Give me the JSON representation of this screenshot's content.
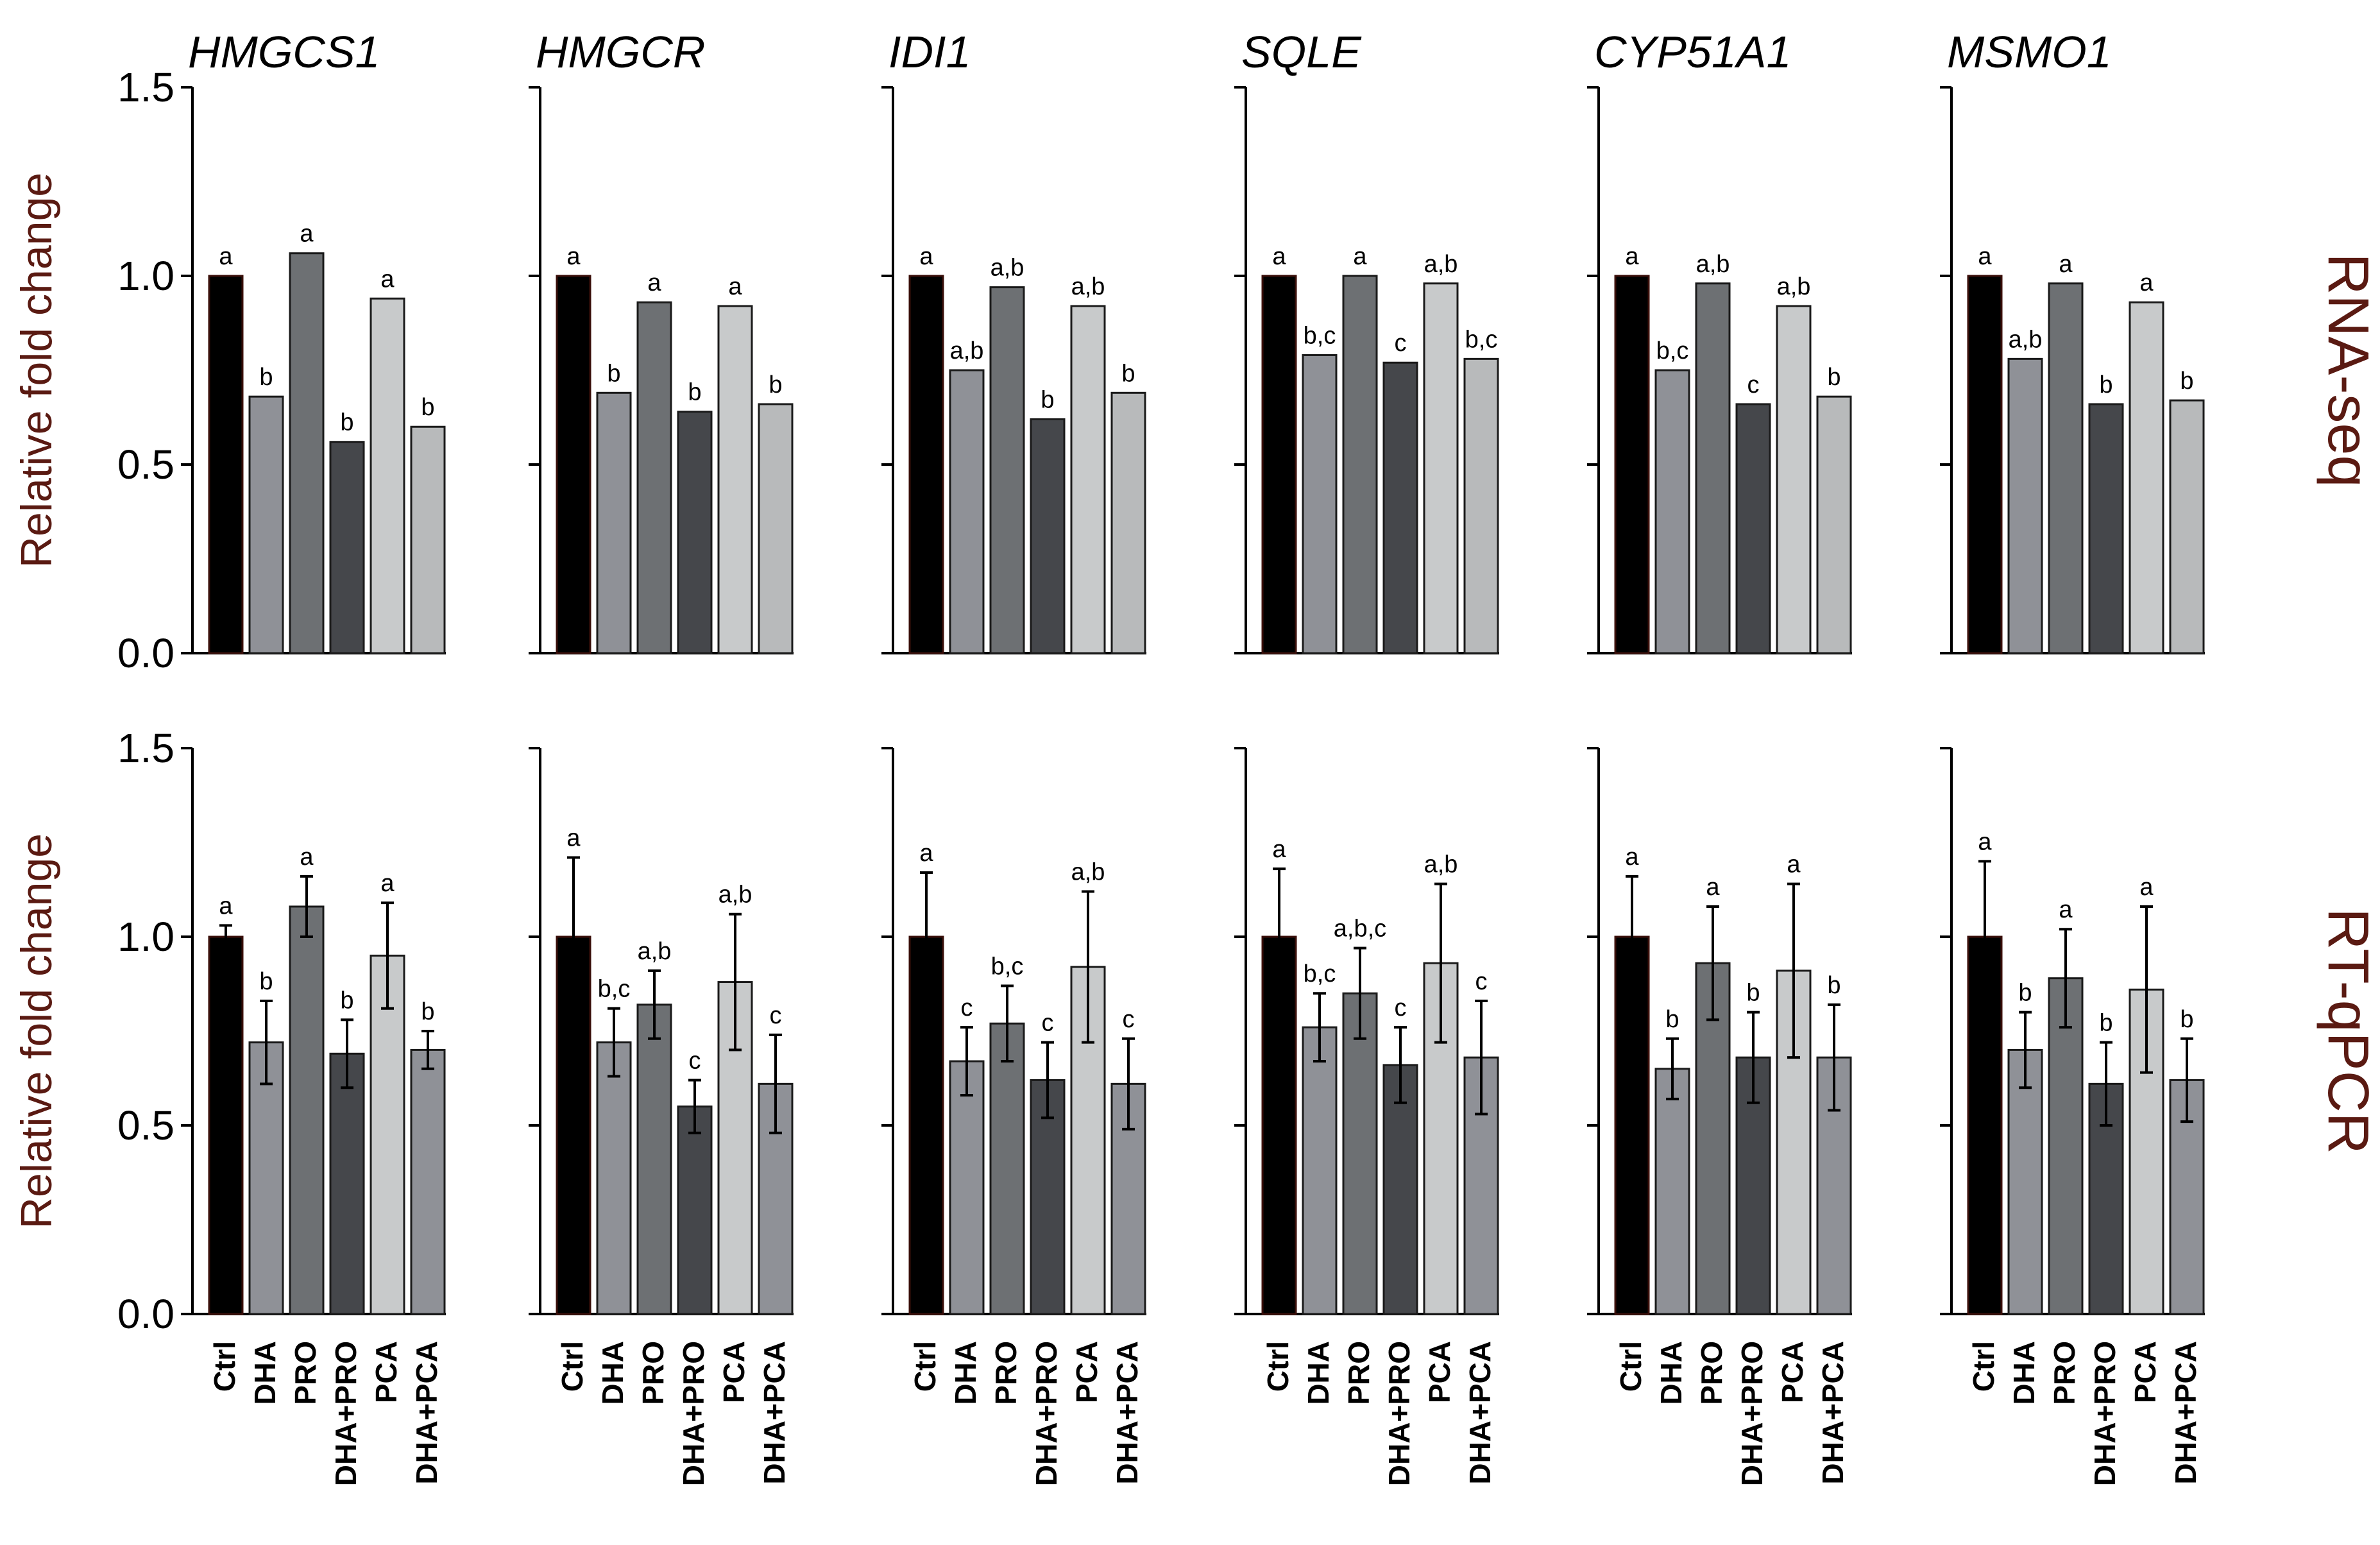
{
  "figure": {
    "row_labels": [
      "RNA-seq",
      "RT-qPCR"
    ],
    "y_axis_label": "Relative fold change",
    "y_ticks": [
      "0.0",
      "0.5",
      "1.0",
      "1.5"
    ],
    "categories": [
      "Ctrl",
      "DHA",
      "PRO",
      "DHA+PRO",
      "PCA",
      "DHA+PCA"
    ],
    "bar_colors": [
      "#000000",
      "#8f9197",
      "#6d7073",
      "#45474b",
      "#c8cacb",
      "#b8babb"
    ],
    "bar_colors_qpcr": [
      "#000000",
      "#8f9197",
      "#6d7073",
      "#45474b",
      "#c8cacb",
      "#8f9197"
    ],
    "label_color": "#5a1a12"
  },
  "chart_data": [
    {
      "type": "bar",
      "title": "HMGCS1",
      "ylabel": "Relative fold change",
      "ylim": [
        0,
        1.5
      ],
      "categories": [
        "Ctrl",
        "DHA",
        "PRO",
        "DHA+PRO",
        "PCA",
        "DHA+PCA"
      ],
      "values": [
        1.0,
        0.68,
        1.06,
        0.56,
        0.94,
        0.6
      ],
      "sig": [
        "a",
        "b",
        "a",
        "b",
        "a",
        "b"
      ]
    },
    {
      "type": "bar",
      "title": "HMGCR",
      "ylim": [
        0,
        1.5
      ],
      "categories": [
        "Ctrl",
        "DHA",
        "PRO",
        "DHA+PRO",
        "PCA",
        "DHA+PCA"
      ],
      "values": [
        1.0,
        0.69,
        0.93,
        0.64,
        0.92,
        0.66
      ],
      "sig": [
        "a",
        "b",
        "a",
        "b",
        "a",
        "b"
      ]
    },
    {
      "type": "bar",
      "title": "IDI1",
      "ylim": [
        0,
        1.5
      ],
      "categories": [
        "Ctrl",
        "DHA",
        "PRO",
        "DHA+PRO",
        "PCA",
        "DHA+PCA"
      ],
      "values": [
        1.0,
        0.75,
        0.97,
        0.62,
        0.92,
        0.69
      ],
      "sig": [
        "a",
        "a,b",
        "a,b",
        "b",
        "a,b",
        "b"
      ]
    },
    {
      "type": "bar",
      "title": "SQLE",
      "ylim": [
        0,
        1.5
      ],
      "categories": [
        "Ctrl",
        "DHA",
        "PRO",
        "DHA+PRO",
        "PCA",
        "DHA+PCA"
      ],
      "values": [
        1.0,
        0.79,
        1.0,
        0.77,
        0.98,
        0.78
      ],
      "sig": [
        "a",
        "b,c",
        "a",
        "c",
        "a,b",
        "b,c"
      ]
    },
    {
      "type": "bar",
      "title": "CYP51A1",
      "ylim": [
        0,
        1.5
      ],
      "categories": [
        "Ctrl",
        "DHA",
        "PRO",
        "DHA+PRO",
        "PCA",
        "DHA+PCA"
      ],
      "values": [
        1.0,
        0.75,
        0.98,
        0.66,
        0.92,
        0.68
      ],
      "sig": [
        "a",
        "b,c",
        "a,b",
        "c",
        "a,b",
        "b"
      ]
    },
    {
      "type": "bar",
      "title": "MSMO1",
      "ylim": [
        0,
        1.5
      ],
      "categories": [
        "Ctrl",
        "DHA",
        "PRO",
        "DHA+PRO",
        "PCA",
        "DHA+PCA"
      ],
      "values": [
        1.0,
        0.78,
        0.98,
        0.66,
        0.93,
        0.67
      ],
      "sig": [
        "a",
        "a,b",
        "a",
        "b",
        "a",
        "b"
      ]
    },
    {
      "type": "bar",
      "ylabel": "Relative fold change",
      "ylim": [
        0,
        1.5
      ],
      "categories": [
        "Ctrl",
        "DHA",
        "PRO",
        "DHA+PRO",
        "PCA",
        "DHA+PCA"
      ],
      "values": [
        1.0,
        0.72,
        1.08,
        0.69,
        0.95,
        0.7
      ],
      "errors": [
        0.03,
        0.11,
        0.08,
        0.09,
        0.14,
        0.05
      ],
      "sig": [
        "a",
        "b",
        "a",
        "b",
        "a",
        "b"
      ]
    },
    {
      "type": "bar",
      "ylim": [
        0,
        1.5
      ],
      "categories": [
        "Ctrl",
        "DHA",
        "PRO",
        "DHA+PRO",
        "PCA",
        "DHA+PCA"
      ],
      "values": [
        1.0,
        0.72,
        0.82,
        0.55,
        0.88,
        0.61
      ],
      "errors": [
        0.21,
        0.09,
        0.09,
        0.07,
        0.18,
        0.13
      ],
      "sig": [
        "a",
        "b,c",
        "a,b",
        "c",
        "a,b",
        "c"
      ]
    },
    {
      "type": "bar",
      "ylim": [
        0,
        1.5
      ],
      "categories": [
        "Ctrl",
        "DHA",
        "PRO",
        "DHA+PRO",
        "PCA",
        "DHA+PCA"
      ],
      "values": [
        1.0,
        0.67,
        0.77,
        0.62,
        0.92,
        0.61
      ],
      "errors": [
        0.17,
        0.09,
        0.1,
        0.1,
        0.2,
        0.12
      ],
      "sig": [
        "a",
        "c",
        "b,c",
        "c",
        "a,b",
        "c"
      ]
    },
    {
      "type": "bar",
      "ylim": [
        0,
        1.5
      ],
      "categories": [
        "Ctrl",
        "DHA",
        "PRO",
        "DHA+PRO",
        "PCA",
        "DHA+PCA"
      ],
      "values": [
        1.0,
        0.76,
        0.85,
        0.66,
        0.93,
        0.68
      ],
      "errors": [
        0.18,
        0.09,
        0.12,
        0.1,
        0.21,
        0.15
      ],
      "sig": [
        "a",
        "b,c",
        "a,b,c",
        "c",
        "a,b",
        "c"
      ]
    },
    {
      "type": "bar",
      "ylim": [
        0,
        1.5
      ],
      "categories": [
        "Ctrl",
        "DHA",
        "PRO",
        "DHA+PRO",
        "PCA",
        "DHA+PCA"
      ],
      "values": [
        1.0,
        0.65,
        0.93,
        0.68,
        0.91,
        0.68
      ],
      "errors": [
        0.16,
        0.08,
        0.15,
        0.12,
        0.23,
        0.14
      ],
      "sig": [
        "a",
        "b",
        "a",
        "b",
        "a",
        "b"
      ]
    },
    {
      "type": "bar",
      "ylim": [
        0,
        1.5
      ],
      "categories": [
        "Ctrl",
        "DHA",
        "PRO",
        "DHA+PRO",
        "PCA",
        "DHA+PCA"
      ],
      "values": [
        1.0,
        0.7,
        0.89,
        0.61,
        0.86,
        0.62
      ],
      "errors": [
        0.2,
        0.1,
        0.13,
        0.11,
        0.22,
        0.11
      ],
      "sig": [
        "a",
        "b",
        "a",
        "b",
        "a",
        "b"
      ]
    }
  ]
}
